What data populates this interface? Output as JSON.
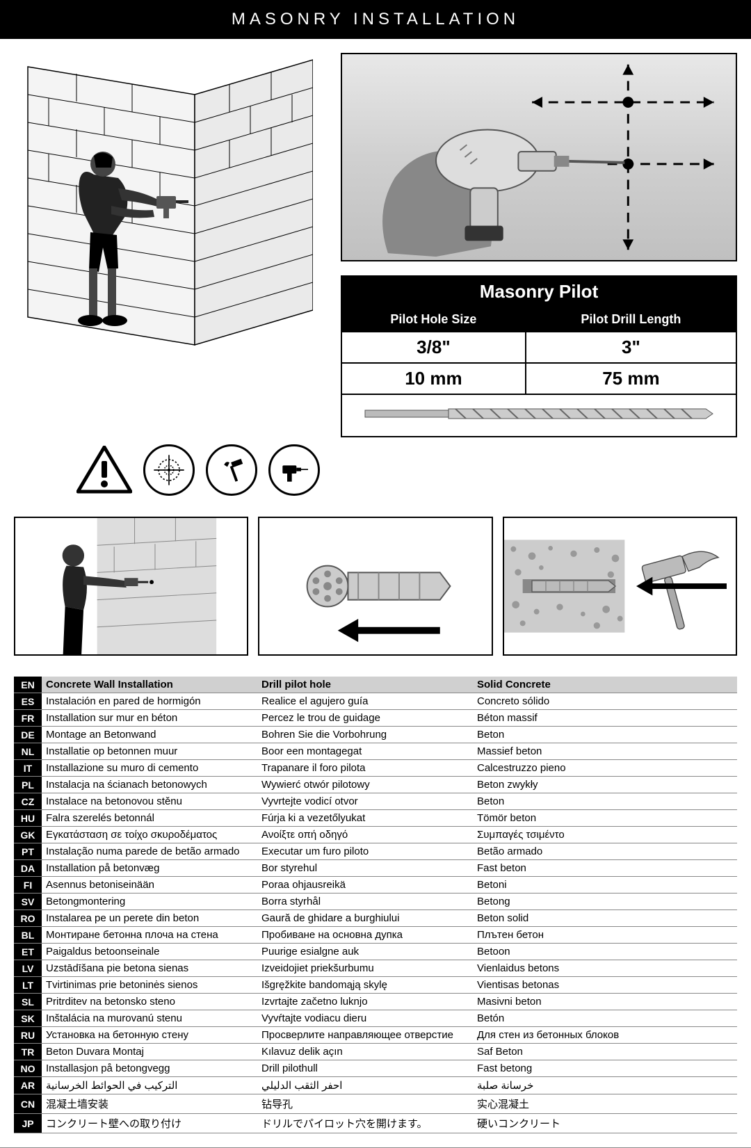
{
  "header": {
    "title": "MASONRY INSTALLATION"
  },
  "spec_table": {
    "title": "Masonry Pilot",
    "col1_header": "Pilot Hole Size",
    "col2_header": "Pilot Drill Length",
    "col1_val1": "3/8\"",
    "col2_val1": "3\"",
    "col1_val2": "10 mm",
    "col2_val2": "75 mm"
  },
  "icons": {
    "warning": "warning-triangle",
    "target": "target-icon",
    "hammer": "hammer-icon",
    "drill": "drill-icon"
  },
  "lang_table": {
    "header": {
      "code": "EN",
      "col1": "Concrete Wall Installation",
      "col2": "Drill pilot hole",
      "col3": "Solid Concrete"
    },
    "rows": [
      {
        "code": "ES",
        "col1": "Instalación en pared de hormigón",
        "col2": "Realice el agujero guía",
        "col3": "Concreto sólido"
      },
      {
        "code": "FR",
        "col1": "Installation sur mur en béton",
        "col2": "Percez le trou de guidage",
        "col3": "Béton massif"
      },
      {
        "code": "DE",
        "col1": "Montage an Betonwand",
        "col2": "Bohren Sie die Vorbohrung",
        "col3": "Beton"
      },
      {
        "code": "NL",
        "col1": "Installatie op betonnen muur",
        "col2": "Boor een montagegat",
        "col3": "Massief beton"
      },
      {
        "code": "IT",
        "col1": "Installazione su muro di cemento",
        "col2": "Trapanare il foro pilota",
        "col3": "Calcestruzzo pieno"
      },
      {
        "code": "PL",
        "col1": "Instalacja na ścianach betonowych",
        "col2": "Wywierć otwór pilotowy",
        "col3": "Beton zwykły"
      },
      {
        "code": "CZ",
        "col1": "Instalace na betonovou stěnu",
        "col2": "Vyvrtejte vodicí otvor",
        "col3": "Beton"
      },
      {
        "code": "HU",
        "col1": "Falra szerelés betonnál",
        "col2": "Fúrja ki a vezetőlyukat",
        "col3": "Tömör beton"
      },
      {
        "code": "GK",
        "col1": "Εγκατάσταση σε τοίχο σκυροδέματος",
        "col2": "Ανοίξτε οπή οδηγό",
        "col3": "Συμπαγές τσιμέντο"
      },
      {
        "code": "PT",
        "col1": "Instalação numa parede de betão armado",
        "col2": "Executar um furo piloto",
        "col3": "Betão armado"
      },
      {
        "code": "DA",
        "col1": "Installation på betonvæg",
        "col2": "Bor styrehul",
        "col3": "Fast beton"
      },
      {
        "code": "FI",
        "col1": "Asennus betoniseinään",
        "col2": "Poraa ohjausreikä",
        "col3": "Betoni"
      },
      {
        "code": "SV",
        "col1": "Betongmontering",
        "col2": "Borra styrhål",
        "col3": "Betong"
      },
      {
        "code": "RO",
        "col1": "Instalarea pe un perete din beton",
        "col2": "Gaură de ghidare a burghiului",
        "col3": "Beton solid"
      },
      {
        "code": "BL",
        "col1": "Монтиране бетонна плоча на стена",
        "col2": "Пробиване на основна дупка",
        "col3": "Плътен бетон"
      },
      {
        "code": "ET",
        "col1": "Paigaldus betoonseinale",
        "col2": "Puurige esialgne auk",
        "col3": "Betoon"
      },
      {
        "code": "LV",
        "col1": "Uzstādīšana pie betona sienas",
        "col2": "Izveidojiet priekšurbumu",
        "col3": "Vienlaidus betons"
      },
      {
        "code": "LT",
        "col1": "Tvirtinimas prie betoninės sienos",
        "col2": "Išgręžkite bandomąją skylę",
        "col3": "Vientisas betonas"
      },
      {
        "code": "SL",
        "col1": "Pritrditev na betonsko steno",
        "col2": "Izvrtajte začetno luknjo",
        "col3": "Masivni beton"
      },
      {
        "code": "SK",
        "col1": "Inštalácia na murovanú stenu",
        "col2": "Vyvŕtajte vodiacu dieru",
        "col3": "Betón"
      },
      {
        "code": "RU",
        "col1": "Установка на бетонную стену",
        "col2": "Просверлите направляющее отверстие",
        "col3": "Для стен из бетонных блоков"
      },
      {
        "code": "TR",
        "col1": "Beton Duvara Montaj",
        "col2": "Kılavuz delik açın",
        "col3": "Saf Beton"
      },
      {
        "code": "NO",
        "col1": "Installasjon på betongvegg",
        "col2": "Drill pilothull",
        "col3": "Fast betong"
      },
      {
        "code": "AR",
        "col1": "التركيب في الحوائط الخرسانية",
        "col2": "احفر الثقب الدليلي",
        "col3": "خرسانة صلبة"
      },
      {
        "code": "CN",
        "col1": "混凝土墙安装",
        "col2": "钻导孔",
        "col3": "实心混凝土"
      },
      {
        "code": "JP",
        "col1": "コンクリート壁への取り付け",
        "col2": "ドリルでパイロット穴を開けます。",
        "col3": "硬いコンクリート"
      }
    ]
  },
  "colors": {
    "black": "#000000",
    "white": "#ffffff",
    "gray_header": "#d0d0d0",
    "border_gray": "#888888"
  }
}
